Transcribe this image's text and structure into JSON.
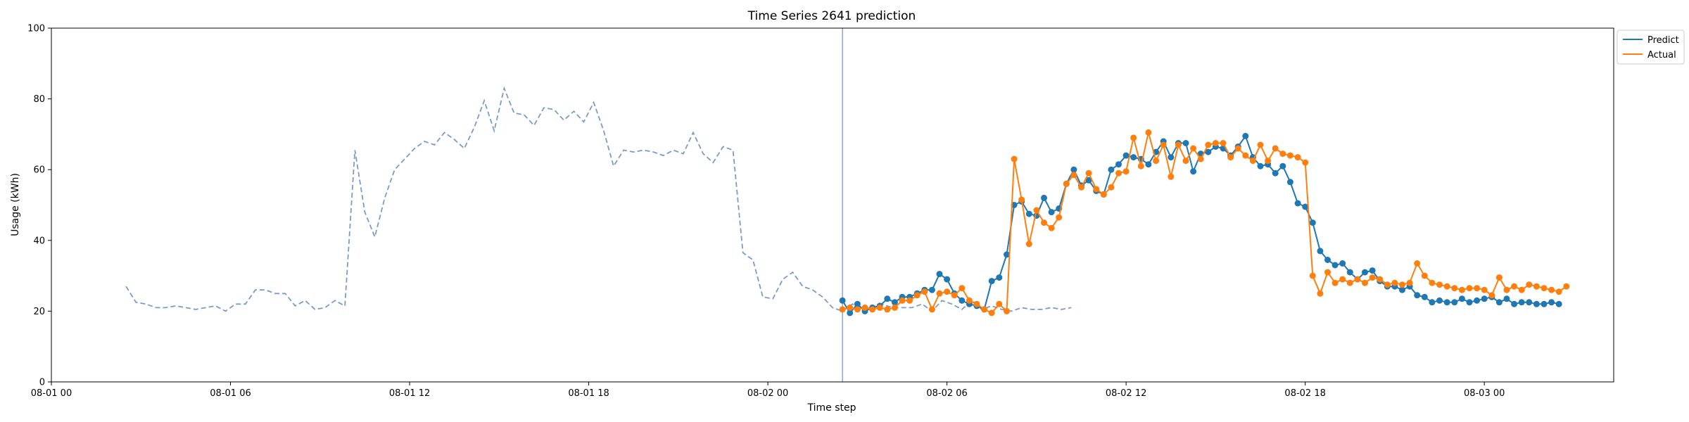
{
  "chart_data": {
    "type": "line",
    "title": "Time Series 2641 prediction",
    "xlabel": "Time step",
    "ylabel": "Usage (kWh)",
    "ylim": [
      0,
      100
    ],
    "xlim": [
      "2025-08-01 00:00",
      "2025-08-03 04:20"
    ],
    "x_ticks": [
      "08-01 00",
      "08-01 06",
      "08-01 12",
      "08-01 18",
      "08-02 00",
      "08-02 06",
      "08-02 12",
      "08-02 18",
      "08-03 00"
    ],
    "y_ticks": [
      0,
      20,
      40,
      60,
      80,
      100
    ],
    "grid": false,
    "legend_placement": "top-right",
    "forecast_start": "2025-08-02 02:30",
    "colors": {
      "history": "#7a9cc6",
      "predict": "#1f77b4",
      "actual": "#ff7f0e",
      "divider": "#6f8fc9"
    },
    "history": {
      "start": "2025-08-01 02:30",
      "step_minutes": 20,
      "values": [
        27,
        22.5,
        22,
        21,
        21,
        21.5,
        21,
        20.5,
        21,
        21.5,
        20,
        22,
        22,
        26,
        26,
        25,
        25,
        21.5,
        23,
        20.5,
        21,
        23,
        21.5,
        65.5,
        48,
        41,
        52,
        60,
        63,
        66,
        68,
        67,
        70.5,
        68.5,
        66,
        72,
        79.5,
        71,
        83,
        76,
        75.5,
        72.5,
        77.5,
        77,
        74,
        76.5,
        73.5,
        79,
        71,
        61,
        65.5,
        65,
        65.5,
        65,
        64,
        65.5,
        64.5,
        70.5,
        64.5,
        62,
        66.5,
        65.5,
        36.5,
        34.5,
        24,
        23.5,
        29,
        31,
        27,
        26,
        24,
        21,
        20,
        22,
        21,
        21,
        22,
        21,
        21,
        21,
        22,
        20,
        23,
        22,
        20.5,
        23,
        20.5,
        21.5,
        20.5,
        20,
        21,
        20.5,
        20.5,
        21,
        20.5,
        21
      ]
    },
    "series": [
      {
        "name": "Predict",
        "start": "2025-08-02 02:30",
        "step_minutes": 15,
        "values": [
          23,
          19.5,
          22,
          20,
          21,
          21.5,
          23.5,
          22.5,
          24,
          24,
          25,
          26,
          26,
          30.5,
          29,
          25,
          23,
          22,
          21.5,
          20.5,
          28.5,
          29.5,
          36,
          50,
          51,
          47.5,
          47,
          52,
          48,
          49,
          56,
          60,
          55.5,
          57,
          54,
          53,
          60,
          61.5,
          64,
          63.5,
          63,
          61.5,
          65,
          68,
          63.5,
          67.5,
          67.5,
          59.5,
          64.5,
          65,
          66.5,
          66,
          64,
          66.5,
          69.5,
          63.5,
          61,
          61.5,
          59,
          61,
          56.5,
          50.5,
          49.5,
          45,
          37,
          34.5,
          33,
          33.5,
          31,
          29,
          31,
          31.5,
          28.5,
          27,
          27,
          26,
          27,
          24.5,
          24,
          22.5,
          23,
          22.5,
          22.5,
          23.5,
          22.5,
          23,
          23.5,
          24,
          22.5,
          23.5,
          22,
          22.5,
          22.5,
          22,
          22,
          22.5,
          22
        ]
      },
      {
        "name": "Actual",
        "start": "2025-08-02 02:30",
        "step_minutes": 15,
        "values": [
          20.5,
          21,
          20.5,
          21,
          20.5,
          21,
          20.5,
          21,
          23,
          23,
          24.5,
          25.5,
          20.5,
          25,
          25.5,
          24.5,
          26.5,
          23,
          22,
          20.5,
          19.5,
          22,
          20,
          63,
          51.5,
          39,
          48.5,
          45,
          43.5,
          46.5,
          56,
          58.5,
          55,
          59,
          54.5,
          53,
          55,
          59,
          59.5,
          69,
          61,
          70.5,
          62.5,
          67,
          58,
          67,
          62.5,
          66,
          63,
          67,
          67.5,
          67.5,
          63.5,
          66,
          64,
          62.5,
          67,
          62.5,
          66,
          64.5,
          64,
          63.5,
          62,
          30,
          25,
          31,
          28,
          29,
          28,
          29,
          28,
          29.5,
          29,
          27.5,
          28,
          27.5,
          28,
          33.5,
          30,
          28,
          27.5,
          27,
          26.5,
          26,
          26.5,
          26.5,
          26,
          24.5,
          29.5,
          26,
          27,
          26,
          27.5,
          27,
          26.5,
          26,
          25.5,
          27
        ]
      }
    ]
  }
}
